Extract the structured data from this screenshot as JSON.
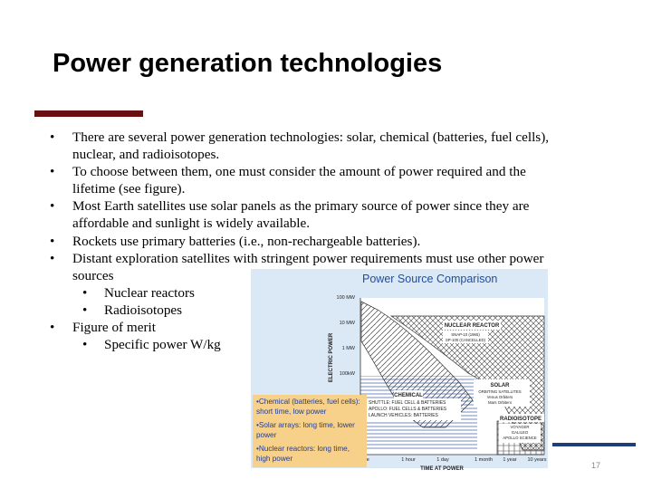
{
  "slide": {
    "title": "Power generation technologies",
    "page_number": "17",
    "colors": {
      "accent_bar": "#6b1010",
      "blue_line": "#1f3f7a",
      "panel_bg": "#dbe8f6",
      "callout_bg": "#f7d08a",
      "callout_text": "#1f3f95"
    }
  },
  "bullets": {
    "items": [
      "There are several power generation technologies: solar, chemical (batteries, fuel cells), nuclear, and radioisotopes.",
      "To choose between them, one must consider the amount of power required and the lifetime (see figure).",
      "Most Earth satellites use solar panels as the primary source of power since they are affordable and sunlight is widely available.",
      "Rockets use primary batteries (i.e., non-rechargeable batteries).",
      "Distant exploration satellites with stringent power requirements must use other power sources"
    ],
    "sub_a": [
      "Nuclear reactors",
      "Radioisotopes"
    ],
    "merit": "Figure of merit",
    "sub_b": [
      "Specific power W/kg"
    ],
    "bullet_char": "•"
  },
  "figure": {
    "title": "Power Source Comparison",
    "y_axis_label": "ELECTRIC POWER",
    "x_axis_label": "TIME AT POWER",
    "y_ticks": [
      "100 MW",
      "10 MW",
      "1 MW",
      "100kW"
    ],
    "x_ticks": [
      "ute",
      "1 hour",
      "1 day",
      "1 month",
      "1 year",
      "10 years"
    ],
    "regions": {
      "nuclear": {
        "label": "NUCLEAR REACTOR",
        "notes": [
          "SNAP-10 (1965)",
          "SP-100 (CANCELLED)"
        ]
      },
      "solar": {
        "label": "SOLAR",
        "notes": [
          "ORBITING SATELLITES",
          "Venus Orbiters",
          "Mars Orbiters"
        ]
      },
      "chemical": {
        "label": "CHEMICAL",
        "notes": [
          "SHUTTLE:  FUEL CELL & BATTERIES",
          "APOLLO:  FUEL CELLS & BATTERIES",
          "LAUNCH VEHICLES:  BATTERIES"
        ]
      },
      "radioisotope": {
        "label": "RADIOISOTOPE",
        "notes": [
          "VOYAGER",
          "GALILEO",
          "APOLLO SCIENCE"
        ]
      }
    },
    "callout": [
      "•Chemical (batteries, fuel cells): short time, low power",
      "•Solar arrays: long time, lower power",
      "•Nuclear reactors: long time, high power"
    ]
  }
}
